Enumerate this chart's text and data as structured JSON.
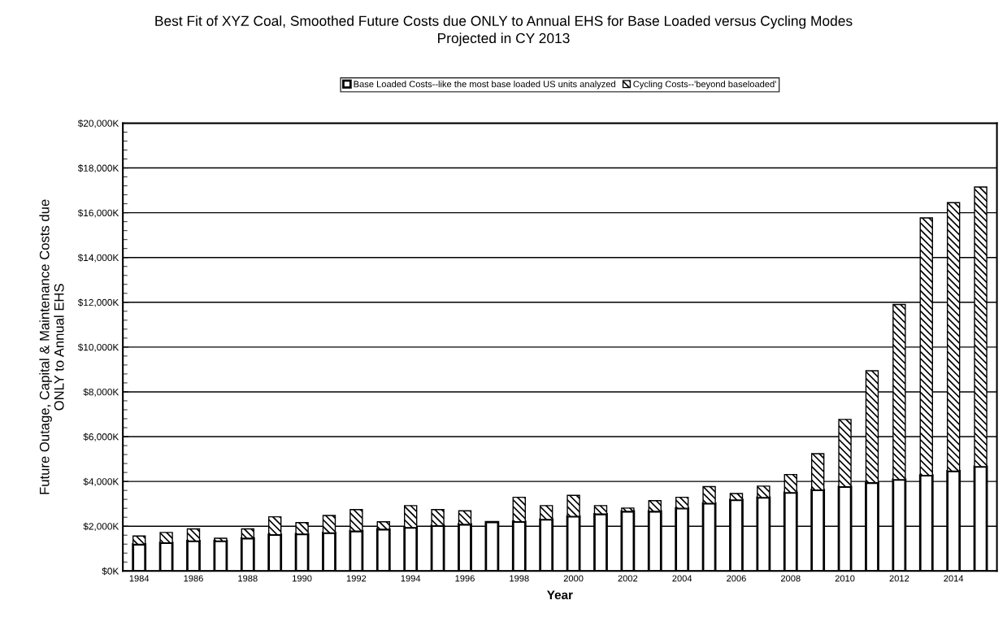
{
  "chart_data": {
    "type": "bar",
    "stacked": true,
    "title": "Best Fit of XYZ Coal, Smoothed Future Costs due ONLY to Annual EHS for Base Loaded versus Cycling Modes\nProjected in CY 2013",
    "xlabel": "Year",
    "ylabel": "Future Outage, Capital & Maintenance Costs due\nONLY to Annual EHS",
    "categories": [
      "1984",
      null,
      "1986",
      null,
      "1988",
      null,
      "1990",
      null,
      "1992",
      null,
      "1994",
      null,
      "1996",
      null,
      "1998",
      null,
      "2000",
      null,
      "2002",
      null,
      "2004",
      null,
      "2006",
      null,
      "2008",
      null,
      "2010",
      null,
      "2012",
      null,
      "2014",
      null
    ],
    "series": [
      {
        "name": "Base Loaded Costs--like the most base loaded US units analyzed",
        "color": "#ffffff",
        "values": [
          1190,
          1260,
          1340,
          1340,
          1460,
          1620,
          1650,
          1700,
          1780,
          1860,
          1940,
          2020,
          2080,
          2180,
          2200,
          2300,
          2440,
          2540,
          2660,
          2660,
          2800,
          3020,
          3170,
          3280,
          3500,
          3620,
          3760,
          3940,
          4080,
          4270,
          4460,
          4660
        ]
      },
      {
        "name": "Cycling Costs--'beyond baseloaded'",
        "color": "#000000",
        "values": [
          370,
          460,
          540,
          120,
          420,
          800,
          510,
          780,
          960,
          340,
          980,
          720,
          610,
          0,
          1090,
          620,
          940,
          380,
          150,
          480,
          490,
          750,
          290,
          510,
          810,
          1620,
          3010,
          5000,
          7820,
          11500,
          11990,
          12490
        ]
      }
    ],
    "ylim": [
      0,
      20000
    ],
    "yticks": [
      {
        "value": 0,
        "label": "$0K"
      },
      {
        "value": 2000,
        "label": "$2,000K"
      },
      {
        "value": 4000,
        "label": "$4,000K"
      },
      {
        "value": 6000,
        "label": "$6,000K"
      },
      {
        "value": 8000,
        "label": "$8,000K"
      },
      {
        "value": 10000,
        "label": "$10,000K"
      },
      {
        "value": 12000,
        "label": "$12,000K"
      },
      {
        "value": 14000,
        "label": "$14,000K"
      },
      {
        "value": 16000,
        "label": "$16,000K"
      },
      {
        "value": 18000,
        "label": "$18,000K"
      },
      {
        "value": 20000,
        "label": "$20,000K"
      }
    ],
    "grid": "y",
    "legend": "top"
  }
}
